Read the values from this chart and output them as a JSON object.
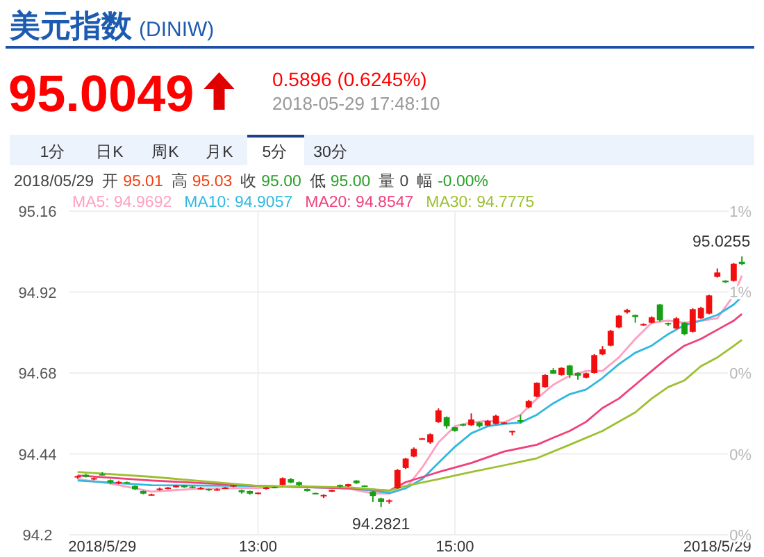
{
  "chart_data": {
    "type": "candlestick",
    "title": "美元指数",
    "subtitle": "(DINIW)",
    "annotations": [
      "95.0049",
      "0.5896 (0.6245%)",
      "2018-05-29 17:48:10",
      "1分",
      "日K",
      "周K",
      "月K",
      "5分",
      "30分",
      "2018/05/29",
      "开",
      "95.01",
      "高",
      "95.03",
      "收",
      "95.00",
      "低",
      "95.00",
      "量",
      "0",
      "幅",
      "-0.00%",
      {
        "text": "94.2821",
        "x": "2018-05-29T14:15",
        "y": 94.2821
      },
      {
        "text": "95.0255",
        "x": "2018-05-29T17:55",
        "y": 95.0255
      }
    ],
    "x": [
      "2018-05-29T11:10",
      "2018-05-29T11:15",
      "2018-05-29T11:20",
      "2018-05-29T11:25",
      "2018-05-29T11:30",
      "2018-05-29T11:35",
      "2018-05-29T11:40",
      "2018-05-29T11:45",
      "2018-05-29T11:50",
      "2018-05-29T11:55",
      "2018-05-29T12:00",
      "2018-05-29T12:05",
      "2018-05-29T12:10",
      "2018-05-29T12:15",
      "2018-05-29T12:20",
      "2018-05-29T12:25",
      "2018-05-29T12:30",
      "2018-05-29T12:35",
      "2018-05-29T12:40",
      "2018-05-29T12:45",
      "2018-05-29T12:50",
      "2018-05-29T12:55",
      "2018-05-29T13:00",
      "2018-05-29T13:05",
      "2018-05-29T13:10",
      "2018-05-29T13:15",
      "2018-05-29T13:20",
      "2018-05-29T13:25",
      "2018-05-29T13:30",
      "2018-05-29T13:35",
      "2018-05-29T13:40",
      "2018-05-29T13:45",
      "2018-05-29T13:50",
      "2018-05-29T13:55",
      "2018-05-29T14:00",
      "2018-05-29T14:05",
      "2018-05-29T14:10",
      "2018-05-29T14:15",
      "2018-05-29T14:20",
      "2018-05-29T14:25",
      "2018-05-29T14:30",
      "2018-05-29T14:35",
      "2018-05-29T14:40",
      "2018-05-29T14:45",
      "2018-05-29T14:50",
      "2018-05-29T14:55",
      "2018-05-29T15:00",
      "2018-05-29T15:05",
      "2018-05-29T15:10",
      "2018-05-29T15:15",
      "2018-05-29T15:20",
      "2018-05-29T15:25",
      "2018-05-29T15:30",
      "2018-05-29T15:35",
      "2018-05-29T15:40",
      "2018-05-29T15:45",
      "2018-05-29T15:50",
      "2018-05-29T15:55",
      "2018-05-29T16:00",
      "2018-05-29T16:05",
      "2018-05-29T16:10",
      "2018-05-29T16:15",
      "2018-05-29T16:20",
      "2018-05-29T16:25",
      "2018-05-29T16:30",
      "2018-05-29T16:35",
      "2018-05-29T16:40",
      "2018-05-29T16:45",
      "2018-05-29T16:50",
      "2018-05-29T16:55",
      "2018-05-29T17:00",
      "2018-05-29T17:05",
      "2018-05-29T17:10",
      "2018-05-29T17:15",
      "2018-05-29T17:20",
      "2018-05-29T17:25",
      "2018-05-29T17:30",
      "2018-05-29T17:35",
      "2018-05-29T17:40",
      "2018-05-29T17:45",
      "2018-05-29T17:50",
      "2018-05-29T17:55"
    ],
    "ohlc": [
      [
        94.37,
        94.376,
        94.366,
        94.374
      ],
      [
        94.378,
        94.381,
        94.37,
        94.372
      ],
      [
        94.364,
        94.37,
        94.362,
        94.368
      ],
      [
        94.38,
        94.386,
        94.376,
        94.378
      ],
      [
        94.362,
        94.364,
        94.35,
        94.355
      ],
      [
        94.355,
        94.36,
        94.35,
        94.357
      ],
      [
        94.356,
        94.358,
        94.352,
        94.354
      ],
      [
        94.345,
        94.346,
        94.333,
        94.335
      ],
      [
        94.33,
        94.331,
        94.32,
        94.322
      ],
      [
        94.318,
        94.322,
        94.317,
        94.32
      ],
      [
        94.333,
        94.34,
        94.331,
        94.337
      ],
      [
        94.337,
        94.342,
        94.335,
        94.34
      ],
      [
        94.341,
        94.348,
        94.34,
        94.346
      ],
      [
        94.347,
        94.348,
        94.339,
        94.341
      ],
      [
        94.343,
        94.345,
        94.338,
        94.34
      ],
      [
        94.338,
        94.342,
        94.334,
        94.339
      ],
      [
        94.336,
        94.337,
        94.33,
        94.333
      ],
      [
        94.333,
        94.338,
        94.331,
        94.335
      ],
      [
        94.337,
        94.342,
        94.336,
        94.34
      ],
      [
        94.343,
        94.348,
        94.341,
        94.347
      ],
      [
        94.332,
        94.334,
        94.322,
        94.326
      ],
      [
        94.33,
        94.331,
        94.319,
        94.322
      ],
      [
        94.322,
        94.326,
        94.32,
        94.325
      ],
      [
        94.336,
        94.342,
        94.334,
        94.34
      ],
      [
        94.342,
        94.343,
        94.338,
        94.34
      ],
      [
        94.348,
        94.37,
        94.347,
        94.368
      ],
      [
        94.365,
        94.368,
        94.353,
        94.355
      ],
      [
        94.356,
        94.358,
        94.345,
        94.348
      ],
      [
        94.336,
        94.337,
        94.328,
        94.33
      ],
      [
        94.324,
        94.325,
        94.32,
        94.321
      ],
      [
        94.316,
        94.32,
        94.309,
        94.318
      ],
      [
        94.328,
        94.334,
        94.327,
        94.333
      ],
      [
        94.348,
        94.349,
        94.34,
        94.343
      ],
      [
        94.344,
        94.351,
        94.342,
        94.35
      ],
      [
        94.361,
        94.362,
        94.351,
        94.353
      ],
      [
        94.346,
        94.347,
        94.342,
        94.344
      ],
      [
        94.328,
        94.33,
        94.297,
        94.315
      ],
      [
        94.308,
        94.31,
        94.2821,
        94.297
      ],
      [
        94.3,
        94.305,
        94.292,
        94.302
      ],
      [
        94.338,
        94.395,
        94.336,
        94.392
      ],
      [
        94.398,
        94.428,
        94.395,
        94.426
      ],
      [
        94.432,
        94.459,
        94.43,
        94.455
      ],
      [
        94.484,
        94.487,
        94.483,
        94.486
      ],
      [
        94.474,
        94.501,
        94.47,
        94.498
      ],
      [
        94.534,
        94.575,
        94.532,
        94.569
      ],
      [
        94.549,
        94.551,
        94.515,
        94.522
      ],
      [
        94.519,
        94.52,
        94.506,
        94.508
      ],
      [
        94.528,
        94.53,
        94.522,
        94.526
      ],
      [
        94.525,
        94.56,
        94.523,
        94.542
      ],
      [
        94.533,
        94.535,
        94.518,
        94.522
      ],
      [
        94.524,
        94.54,
        94.522,
        94.538
      ],
      [
        94.529,
        94.556,
        94.527,
        94.553
      ],
      [
        94.532,
        94.535,
        94.53,
        94.533
      ],
      [
        94.506,
        94.509,
        94.495,
        94.508
      ],
      [
        94.54,
        94.556,
        94.53,
        94.536
      ],
      [
        94.578,
        94.6,
        94.575,
        94.597
      ],
      [
        94.61,
        94.652,
        94.608,
        94.651
      ],
      [
        94.638,
        94.676,
        94.636,
        94.674
      ],
      [
        94.688,
        94.694,
        94.677,
        94.678
      ],
      [
        94.674,
        94.697,
        94.672,
        94.695
      ],
      [
        94.702,
        94.704,
        94.665,
        94.674
      ],
      [
        94.68,
        94.682,
        94.66,
        94.672
      ],
      [
        94.666,
        94.681,
        94.664,
        94.679
      ],
      [
        94.68,
        94.736,
        94.678,
        94.733
      ],
      [
        94.735,
        94.76,
        94.733,
        94.75
      ],
      [
        94.761,
        94.808,
        94.759,
        94.805
      ],
      [
        94.815,
        94.852,
        94.813,
        94.85
      ],
      [
        94.86,
        94.87,
        94.856,
        94.867
      ],
      [
        94.852,
        94.853,
        94.829,
        94.846
      ],
      [
        94.822,
        94.827,
        94.82,
        94.825
      ],
      [
        94.829,
        94.848,
        94.827,
        94.845
      ],
      [
        94.883,
        94.884,
        94.832,
        94.836
      ],
      [
        94.828,
        94.829,
        94.82,
        94.824
      ],
      [
        94.812,
        94.846,
        94.81,
        94.842
      ],
      [
        94.829,
        94.831,
        94.792,
        94.795
      ],
      [
        94.802,
        94.872,
        94.8,
        94.869
      ],
      [
        94.842,
        94.876,
        94.84,
        94.873
      ],
      [
        94.856,
        94.912,
        94.854,
        94.91
      ],
      [
        94.965,
        94.99,
        94.963,
        94.978
      ],
      [
        94.954,
        94.955,
        94.947,
        94.949
      ],
      [
        94.953,
        95.006,
        94.951,
        95.004
      ],
      [
        95.01,
        95.0255,
        95.0,
        95.003
      ]
    ],
    "colors": [
      "#f00e0e",
      "#16a016",
      "#f00e0e",
      "#16a016",
      "#16a016",
      "#f00e0e",
      "#16a016",
      "#16a016",
      "#16a016",
      "#f00e0e",
      "#f00e0e",
      "#f00e0e",
      "#f00e0e",
      "#16a016",
      "#16a016",
      "#f00e0e",
      "#16a016",
      "#f00e0e",
      "#f00e0e",
      "#f00e0e",
      "#16a016",
      "#16a016",
      "#f00e0e",
      "#f00e0e",
      "#16a016",
      "#f00e0e",
      "#16a016",
      "#16a016",
      "#16a016",
      "#16a016",
      "#f00e0e",
      "#f00e0e",
      "#16a016",
      "#f00e0e",
      "#16a016",
      "#16a016",
      "#16a016",
      "#16a016",
      "#f00e0e",
      "#f00e0e",
      "#f00e0e",
      "#f00e0e",
      "#f00e0e",
      "#f00e0e",
      "#f00e0e",
      "#16a016",
      "#16a016",
      "#16a016",
      "#f00e0e",
      "#16a016",
      "#f00e0e",
      "#f00e0e",
      "#f00e0e",
      "#f00e0e",
      "#16a016",
      "#f00e0e",
      "#f00e0e",
      "#f00e0e",
      "#16a016",
      "#f00e0e",
      "#16a016",
      "#16a016",
      "#f00e0e",
      "#f00e0e",
      "#f00e0e",
      "#f00e0e",
      "#f00e0e",
      "#f00e0e",
      "#16a016",
      "#f00e0e",
      "#f00e0e",
      "#16a016",
      "#16a016",
      "#f00e0e",
      "#16a016",
      "#f00e0e",
      "#f00e0e",
      "#f00e0e",
      "#f00e0e",
      "#16a016",
      "#f00e0e",
      "#16a016"
    ],
    "series": [
      {
        "type": "line",
        "name": "MA5: 94.9692",
        "color": "#ffa0c0",
        "x": [
          "2018-05-29T11:10",
          "2018-05-29T11:30",
          "2018-05-29T11:55",
          "2018-05-29T12:25",
          "2018-05-29T13:00",
          "2018-05-29T13:25",
          "2018-05-29T13:55",
          "2018-05-29T14:10",
          "2018-05-29T14:20",
          "2018-05-29T14:30",
          "2018-05-29T14:40",
          "2018-05-29T14:50",
          "2018-05-29T15:00",
          "2018-05-29T15:10",
          "2018-05-29T15:20",
          "2018-05-29T15:30",
          "2018-05-29T15:40",
          "2018-05-29T15:50",
          "2018-05-29T16:00",
          "2018-05-29T16:10",
          "2018-05-29T16:20",
          "2018-05-29T16:30",
          "2018-05-29T16:40",
          "2018-05-29T16:50",
          "2018-05-29T17:00",
          "2018-05-29T17:10",
          "2018-05-29T17:20",
          "2018-05-29T17:30",
          "2018-05-29T17:40",
          "2018-05-29T17:50",
          "2018-05-29T17:55"
        ],
        "values": [
          94.365,
          94.352,
          94.328,
          94.337,
          94.339,
          94.345,
          94.337,
          94.323,
          94.322,
          94.338,
          94.399,
          94.474,
          94.522,
          94.533,
          94.538,
          94.533,
          94.556,
          94.604,
          94.645,
          94.672,
          94.686,
          94.686,
          94.726,
          94.781,
          94.829,
          94.835,
          94.829,
          94.835,
          94.842,
          94.91,
          94.969
        ]
      },
      {
        "type": "line",
        "name": "MA10: 94.9057",
        "color": "#30b8e0",
        "x": [
          "2018-05-29T11:10",
          "2018-05-29T11:55",
          "2018-05-29T13:00",
          "2018-05-29T13:55",
          "2018-05-29T14:10",
          "2018-05-29T14:20",
          "2018-05-29T14:30",
          "2018-05-29T14:40",
          "2018-05-29T14:50",
          "2018-05-29T15:00",
          "2018-05-29T15:10",
          "2018-05-29T15:20",
          "2018-05-29T15:30",
          "2018-05-29T15:40",
          "2018-05-29T15:50",
          "2018-05-29T16:00",
          "2018-05-29T16:10",
          "2018-05-29T16:20",
          "2018-05-29T16:30",
          "2018-05-29T16:40",
          "2018-05-29T16:50",
          "2018-05-29T17:00",
          "2018-05-29T17:10",
          "2018-05-29T17:20",
          "2018-05-29T17:30",
          "2018-05-29T17:40",
          "2018-05-29T17:50",
          "2018-05-29T17:55"
        ],
        "values": [
          94.361,
          94.347,
          94.345,
          94.338,
          94.331,
          94.324,
          94.338,
          94.365,
          94.413,
          94.461,
          94.501,
          94.522,
          94.529,
          94.533,
          94.556,
          94.59,
          94.617,
          94.631,
          94.665,
          94.706,
          94.74,
          94.761,
          94.795,
          94.822,
          94.835,
          94.852,
          94.883,
          94.906
        ]
      },
      {
        "type": "line",
        "name": "MA20: 94.8547",
        "color": "#f0407a",
        "x": [
          "2018-05-29T11:10",
          "2018-05-29T11:55",
          "2018-05-29T13:00",
          "2018-05-29T13:55",
          "2018-05-29T14:20",
          "2018-05-29T14:30",
          "2018-05-29T14:50",
          "2018-05-29T15:10",
          "2018-05-29T15:30",
          "2018-05-29T15:50",
          "2018-05-29T16:00",
          "2018-05-29T16:10",
          "2018-05-29T16:20",
          "2018-05-29T16:30",
          "2018-05-29T16:40",
          "2018-05-29T16:50",
          "2018-05-29T17:00",
          "2018-05-29T17:10",
          "2018-05-29T17:20",
          "2018-05-29T17:30",
          "2018-05-29T17:40",
          "2018-05-29T17:50",
          "2018-05-29T17:55"
        ],
        "values": [
          94.376,
          94.361,
          94.345,
          94.338,
          94.331,
          94.356,
          94.386,
          94.413,
          94.447,
          94.467,
          94.488,
          94.508,
          94.535,
          94.576,
          94.604,
          94.645,
          94.686,
          94.726,
          94.761,
          94.781,
          94.808,
          94.835,
          94.855
        ]
      },
      {
        "type": "line",
        "name": "MA30: 94.7775",
        "color": "#9cc030",
        "x": [
          "2018-05-29T11:10",
          "2018-05-29T11:55",
          "2018-05-29T13:00",
          "2018-05-29T13:55",
          "2018-05-29T14:20",
          "2018-05-29T14:30",
          "2018-05-29T14:50",
          "2018-05-29T15:10",
          "2018-05-29T15:30",
          "2018-05-29T15:50",
          "2018-05-29T16:10",
          "2018-05-29T16:30",
          "2018-05-29T16:50",
          "2018-05-29T17:00",
          "2018-05-29T17:10",
          "2018-05-29T17:20",
          "2018-05-29T17:30",
          "2018-05-29T17:40",
          "2018-05-29T17:50",
          "2018-05-29T17:55"
        ],
        "values": [
          94.386,
          94.372,
          94.345,
          94.341,
          94.331,
          94.345,
          94.365,
          94.386,
          94.406,
          94.427,
          94.467,
          94.508,
          94.563,
          94.604,
          94.638,
          94.658,
          94.7,
          94.726,
          94.76,
          94.778
        ]
      }
    ],
    "xlim": [
      "2018-05-29T11:05",
      "2018-05-29T18:00"
    ],
    "xticks": [
      {
        "value": "2018-05-29T11:25",
        "label": "2018/5/29"
      },
      {
        "value": "2018-05-29T13:00",
        "label": "13:00"
      },
      {
        "value": "2018-05-29T15:00",
        "label": "15:00"
      },
      {
        "value": "2018-05-29T17:40",
        "label": "2018/5/29"
      }
    ],
    "ylim": [
      94.2,
      95.16
    ],
    "yticks": [
      94.2,
      94.44,
      94.68,
      94.92,
      95.16
    ],
    "y2lim": [
      -0.228,
      0.789
    ],
    "y2ticks": [
      {
        "value": -0.228,
        "label": "0%"
      },
      {
        "value": 0.026,
        "label": "0%"
      },
      {
        "value": 0.28,
        "label": "0%"
      },
      {
        "value": 0.535,
        "label": "1%"
      },
      {
        "value": 0.789,
        "label": "1%"
      }
    ],
    "ref_lines": [
      {
        "axis": "x",
        "value": "2018-05-29T13:00",
        "color": "#eeeeee"
      },
      {
        "axis": "x",
        "value": "2018-05-29T15:00",
        "color": "#eeeeee"
      }
    ],
    "grid": "y",
    "legend": "top"
  }
}
